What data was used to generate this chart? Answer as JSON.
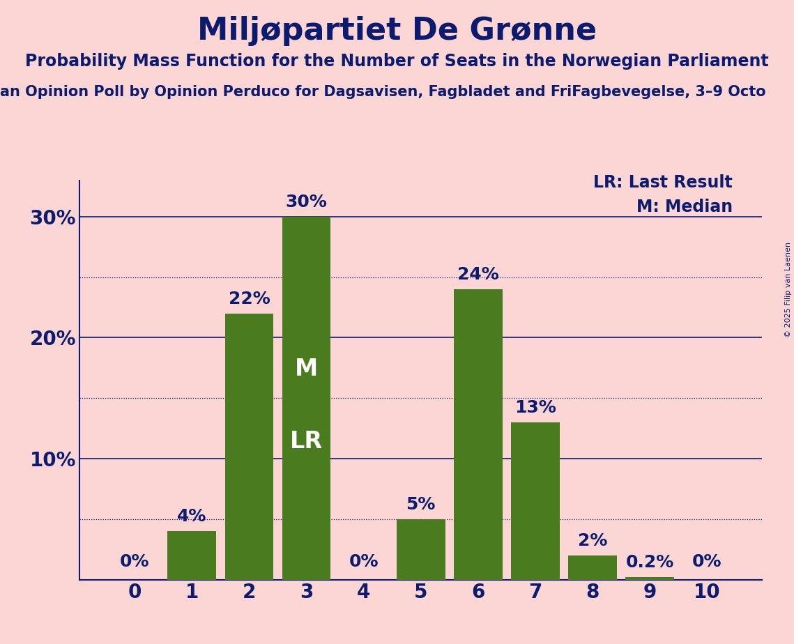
{
  "title": "Miljøpartiet De Grønne",
  "subtitle1": "Probability Mass Function for the Number of Seats in the Norwegian Parliament",
  "subtitle2": "an Opinion Poll by Opinion Perduco for Dagsavisen, Fagbladet and FriFagbevegelse, 3–9 Octo",
  "copyright": "© 2025 Filip van Laenen",
  "categories": [
    0,
    1,
    2,
    3,
    4,
    5,
    6,
    7,
    8,
    9,
    10
  ],
  "values": [
    0.0,
    4.0,
    22.0,
    30.0,
    0.0,
    5.0,
    24.0,
    13.0,
    2.0,
    0.2,
    0.0
  ],
  "bar_color": "#4a7c1f",
  "background_color": "#fcd5d5",
  "title_color": "#0d1b6e",
  "label_color": "#0d1b6e",
  "axis_color": "#0d1b6e",
  "ylim": [
    0,
    33
  ],
  "yticks": [
    10,
    20,
    30
  ],
  "ytick_labels": [
    "10%",
    "20%",
    "30%"
  ],
  "median_bar": 3,
  "last_result_bar": 3,
  "lr_label": "LR",
  "m_label": "M",
  "legend_lr": "LR: Last Result",
  "legend_m": "M: Median",
  "dotted_grid_values": [
    5,
    15,
    25
  ],
  "solid_grid_values": [
    10,
    20,
    30
  ],
  "bar_labels": [
    "0%",
    "4%",
    "22%",
    "30%",
    "0%",
    "5%",
    "24%",
    "13%",
    "2%",
    "0.2%",
    "0%"
  ]
}
